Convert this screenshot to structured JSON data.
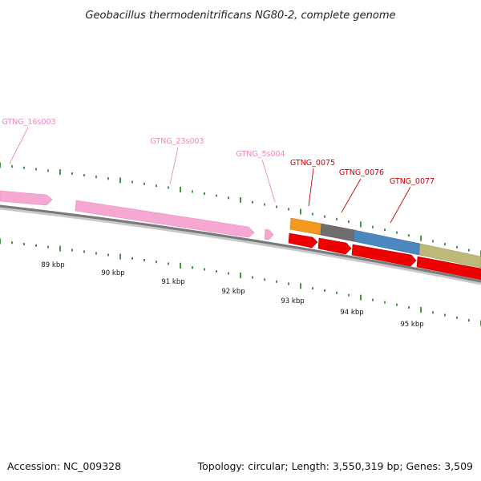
{
  "title": "Geobacillus thermodenitrificans NG80-2, complete genome",
  "footer": {
    "accession": "Accession: NC_009328",
    "summary": "Topology: circular; Length: 3,550,319 bp; Genes: 3,509"
  },
  "colors": {
    "backbone": "#7a7a7a",
    "tick": "#1a7a1a",
    "rna_feature": "#f7a8d2",
    "rna_label": "#ee88bb",
    "cds_label": "#cc0000",
    "cds_strand": "#ee0000",
    "cds_orange": "#f39a1e",
    "cds_gray": "#6e6e6e",
    "cds_blue": "#4d87c0",
    "cds_khaki": "#bdb978"
  },
  "ticks": [
    {
      "label": "89 kbp"
    },
    {
      "label": "90 kbp"
    },
    {
      "label": "91 kbp"
    },
    {
      "label": "92 kbp"
    },
    {
      "label": "93 kbp"
    },
    {
      "label": "94 kbp"
    },
    {
      "label": "95 kbp"
    }
  ],
  "labels": [
    {
      "text": "GTNG_16s003",
      "kind": "rna"
    },
    {
      "text": "GTNG_23s003",
      "kind": "rna"
    },
    {
      "text": "GTNG_5s004",
      "kind": "rna"
    },
    {
      "text": "GTNG_0075",
      "kind": "cds"
    },
    {
      "text": "GTNG_0076",
      "kind": "cds"
    },
    {
      "text": "GTNG_0077",
      "kind": "cds"
    }
  ]
}
